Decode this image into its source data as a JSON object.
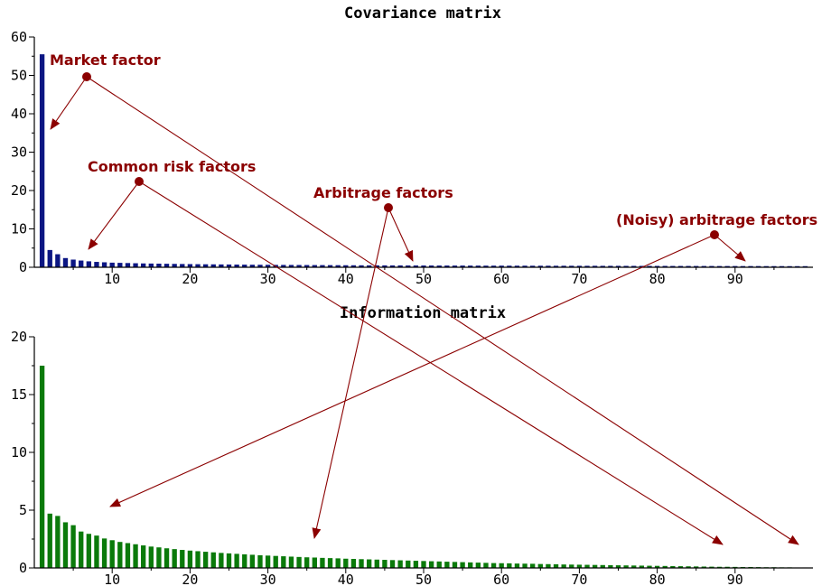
{
  "chart_data": [
    {
      "type": "bar",
      "title": "Covariance matrix",
      "color": "#0b1683",
      "ylim": [
        0,
        60
      ],
      "xlim": [
        0,
        100
      ],
      "y_ticks": [
        0,
        10,
        20,
        30,
        40,
        50,
        60
      ],
      "x_ticks": [
        10,
        20,
        30,
        40,
        50,
        60,
        70,
        80,
        90
      ],
      "grid": false,
      "x": [
        1,
        2,
        3,
        4,
        5,
        6,
        7,
        8,
        9,
        10,
        11,
        12,
        13,
        14,
        15,
        16,
        17,
        18,
        19,
        20,
        21,
        22,
        23,
        24,
        25,
        26,
        27,
        28,
        29,
        30,
        31,
        32,
        33,
        34,
        35,
        36,
        37,
        38,
        39,
        40,
        41,
        42,
        43,
        44,
        45,
        46,
        47,
        48,
        49,
        50,
        51,
        52,
        53,
        54,
        55,
        56,
        57,
        58,
        59,
        60,
        61,
        62,
        63,
        64,
        65,
        66,
        67,
        68,
        69,
        70,
        71,
        72,
        73,
        74,
        75,
        76,
        77,
        78,
        79,
        80,
        81,
        82,
        83,
        84,
        85,
        86,
        87,
        88,
        89,
        90,
        91,
        92,
        93,
        94,
        95,
        96,
        97,
        98,
        99
      ],
      "values": [
        55.5,
        4.5,
        3.4,
        2.4,
        2.0,
        1.75,
        1.55,
        1.4,
        1.3,
        1.2,
        1.15,
        1.1,
        1.05,
        1.0,
        0.97,
        0.94,
        0.91,
        0.88,
        0.85,
        0.82,
        0.8,
        0.78,
        0.76,
        0.74,
        0.72,
        0.7,
        0.68,
        0.66,
        0.65,
        0.64,
        0.62,
        0.61,
        0.6,
        0.59,
        0.58,
        0.57,
        0.56,
        0.55,
        0.54,
        0.53,
        0.52,
        0.51,
        0.5,
        0.5,
        0.49,
        0.48,
        0.48,
        0.47,
        0.47,
        0.46,
        0.46,
        0.45,
        0.45,
        0.44,
        0.44,
        0.43,
        0.43,
        0.42,
        0.42,
        0.42,
        0.41,
        0.41,
        0.41,
        0.4,
        0.4,
        0.4,
        0.39,
        0.39,
        0.39,
        0.38,
        0.38,
        0.38,
        0.37,
        0.37,
        0.37,
        0.36,
        0.36,
        0.36,
        0.35,
        0.35,
        0.35,
        0.34,
        0.34,
        0.34,
        0.33,
        0.33,
        0.33,
        0.32,
        0.32,
        0.32,
        0.31,
        0.31,
        0.31,
        0.3,
        0.3,
        0.3,
        0.29,
        0.29,
        0.29
      ]
    },
    {
      "type": "bar",
      "title": "Information matrix",
      "color": "#0a7a0a",
      "ylim": [
        0,
        20
      ],
      "xlim": [
        0,
        100
      ],
      "y_ticks": [
        0,
        5,
        10,
        15,
        20
      ],
      "x_ticks": [
        10,
        20,
        30,
        40,
        50,
        60,
        70,
        80,
        90
      ],
      "grid": false,
      "x": [
        1,
        2,
        3,
        4,
        5,
        6,
        7,
        8,
        9,
        10,
        11,
        12,
        13,
        14,
        15,
        16,
        17,
        18,
        19,
        20,
        21,
        22,
        23,
        24,
        25,
        26,
        27,
        28,
        29,
        30,
        31,
        32,
        33,
        34,
        35,
        36,
        37,
        38,
        39,
        40,
        41,
        42,
        43,
        44,
        45,
        46,
        47,
        48,
        49,
        50,
        51,
        52,
        53,
        54,
        55,
        56,
        57,
        58,
        59,
        60,
        61,
        62,
        63,
        64,
        65,
        66,
        67,
        68,
        69,
        70,
        71,
        72,
        73,
        74,
        75,
        76,
        77,
        78,
        79,
        80,
        81,
        82,
        83,
        84,
        85,
        86,
        87,
        88,
        89,
        90,
        91,
        92,
        93,
        94,
        95,
        96,
        97,
        98,
        99
      ],
      "values": [
        17.5,
        4.7,
        4.5,
        3.95,
        3.7,
        3.15,
        2.95,
        2.8,
        2.55,
        2.4,
        2.25,
        2.15,
        2.05,
        1.95,
        1.85,
        1.78,
        1.7,
        1.63,
        1.56,
        1.5,
        1.45,
        1.4,
        1.35,
        1.3,
        1.26,
        1.22,
        1.18,
        1.14,
        1.1,
        1.07,
        1.04,
        1.01,
        0.98,
        0.95,
        0.92,
        0.9,
        0.87,
        0.85,
        0.83,
        0.8,
        0.78,
        0.76,
        0.74,
        0.72,
        0.7,
        0.68,
        0.66,
        0.64,
        0.62,
        0.6,
        0.58,
        0.56,
        0.54,
        0.52,
        0.5,
        0.48,
        0.46,
        0.44,
        0.42,
        0.41,
        0.4,
        0.38,
        0.37,
        0.36,
        0.34,
        0.33,
        0.32,
        0.3,
        0.29,
        0.28,
        0.27,
        0.26,
        0.25,
        0.24,
        0.23,
        0.22,
        0.21,
        0.2,
        0.19,
        0.18,
        0.17,
        0.16,
        0.15,
        0.14,
        0.13,
        0.12,
        0.11,
        0.1,
        0.1,
        0.09,
        0.08,
        0.08,
        0.07,
        0.06,
        0.06,
        0.05,
        0.05,
        0.04,
        0.04
      ]
    }
  ],
  "annotations": {
    "market": "Market factor",
    "common": "Common risk factors",
    "arbitrage": "Arbitrage factors",
    "noisy": "(Noisy) arbitrage factors"
  },
  "annotation_color": "#8b0000"
}
